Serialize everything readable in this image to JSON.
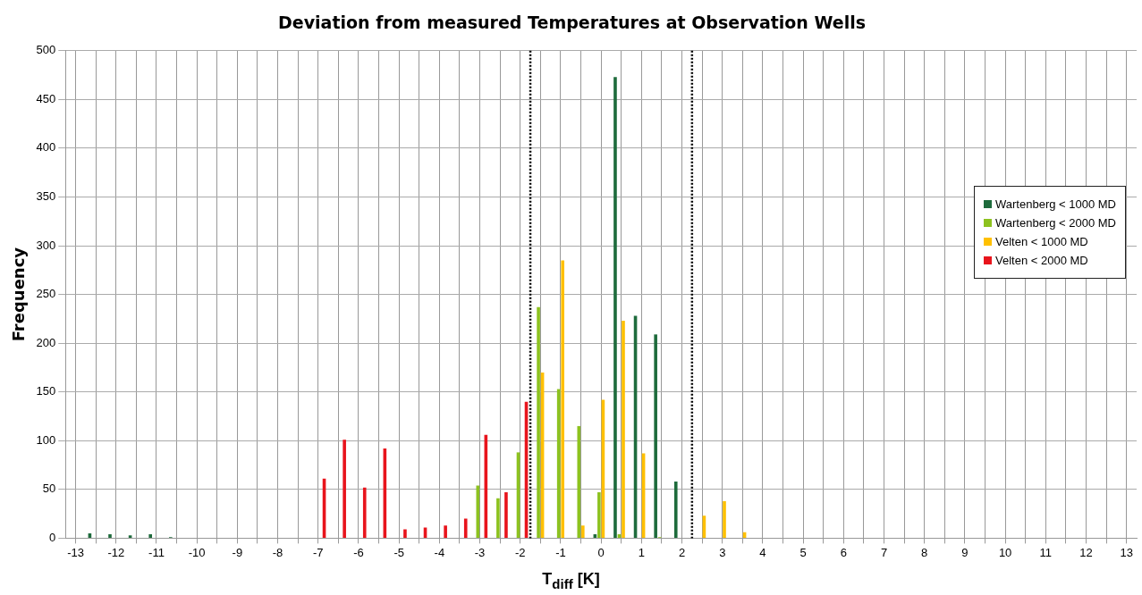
{
  "chart_data": {
    "type": "histogram",
    "title": "Deviation from measured Temperatures at Observation Wells",
    "xlabel": "T$_{diff}$ [K]",
    "ylabel": "Frequency",
    "bins": [
      -13.25,
      -12.75,
      -12.25,
      -11.75,
      -11.25,
      -10.75,
      -10.25,
      -9.75,
      -9.25,
      -8.75,
      -8.25,
      -7.75,
      -7.25,
      -6.75,
      -6.25,
      -5.75,
      -5.25,
      -4.75,
      -4.25,
      -3.75,
      -3.25,
      -2.75,
      -2.25,
      -1.75,
      -1.25,
      -0.75,
      -0.25,
      0.25,
      0.75,
      1.25,
      1.75,
      2.25,
      2.75,
      3.25,
      3.75,
      4.25,
      4.75,
      5.25,
      5.75,
      6.25,
      6.75,
      7.25,
      7.75,
      8.25,
      8.75,
      9.25,
      9.75,
      10.25,
      10.75,
      11.25,
      11.75,
      12.25,
      12.75,
      13.25
    ],
    "series": [
      {
        "name": "Wartenberg < 1000 MD",
        "color": "#1e6b3c",
        "values": [
          0,
          5,
          4,
          3,
          4,
          1,
          0,
          0,
          0,
          0,
          0,
          0,
          0,
          0,
          0,
          0,
          0,
          0,
          0,
          0,
          0,
          0,
          0,
          0,
          0,
          0,
          4,
          473,
          228,
          209,
          58,
          0,
          0,
          0,
          0,
          0,
          0,
          0,
          0,
          0,
          0,
          0,
          0,
          0,
          0,
          0,
          0,
          0,
          0,
          0,
          0,
          0,
          0
        ]
      },
      {
        "name": "Wartenberg < 2000 MD",
        "color": "#8dc21f",
        "values": [
          0,
          0,
          0,
          0,
          0,
          0,
          0,
          0,
          0,
          0,
          0,
          0,
          0,
          0,
          0,
          0,
          0,
          0,
          0,
          0,
          54,
          41,
          88,
          237,
          153,
          115,
          47,
          4,
          0,
          1,
          0,
          0,
          0,
          0,
          0,
          0,
          0,
          0,
          0,
          0,
          0,
          0,
          0,
          0,
          0,
          0,
          0,
          0,
          0,
          0,
          0,
          0,
          0
        ]
      },
      {
        "name": "Velten < 1000 MD",
        "color": "#ffc000",
        "values": [
          0,
          0,
          0,
          0,
          0,
          0,
          0,
          0,
          0,
          0,
          0,
          0,
          0,
          0,
          0,
          0,
          0,
          0,
          0,
          0,
          0,
          0,
          0,
          170,
          285,
          13,
          142,
          223,
          87,
          0,
          0,
          23,
          38,
          6,
          0,
          0,
          0,
          0,
          0,
          0,
          0,
          0,
          0,
          0,
          0,
          0,
          0,
          0,
          0,
          0,
          0,
          0,
          0
        ]
      },
      {
        "name": "Velten < 2000 MD",
        "color": "#e8141c",
        "values": [
          0,
          0,
          0,
          0,
          0,
          0,
          0,
          0,
          0,
          0,
          0,
          0,
          61,
          101,
          52,
          92,
          9,
          11,
          13,
          20,
          106,
          47,
          140,
          0,
          0,
          0,
          0,
          0,
          0,
          0,
          0,
          0,
          0,
          0,
          0,
          0,
          0,
          0,
          0,
          0,
          0,
          0,
          0,
          0,
          0,
          0,
          0,
          0,
          0,
          0,
          0,
          0,
          0
        ]
      }
    ],
    "xlim": [
      -13.25,
      13.25
    ],
    "xticks": [
      -13,
      -12,
      -11,
      -10,
      -9,
      -8,
      -7,
      -6,
      -5,
      -4,
      -3,
      -2,
      -1,
      0,
      1,
      2,
      3,
      4,
      5,
      6,
      7,
      8,
      9,
      10,
      11,
      12,
      13
    ],
    "ylim": [
      0,
      500
    ],
    "yticks": [
      0,
      50,
      100,
      150,
      200,
      250,
      300,
      350,
      400,
      450,
      500
    ],
    "ref_lines": [
      {
        "axis": "x",
        "value": -1.75,
        "color": "#000000",
        "line_style": "dotted"
      },
      {
        "axis": "x",
        "value": 2.25,
        "color": "#000000",
        "line_style": "dotted"
      }
    ],
    "grid": true,
    "legend": "right"
  }
}
